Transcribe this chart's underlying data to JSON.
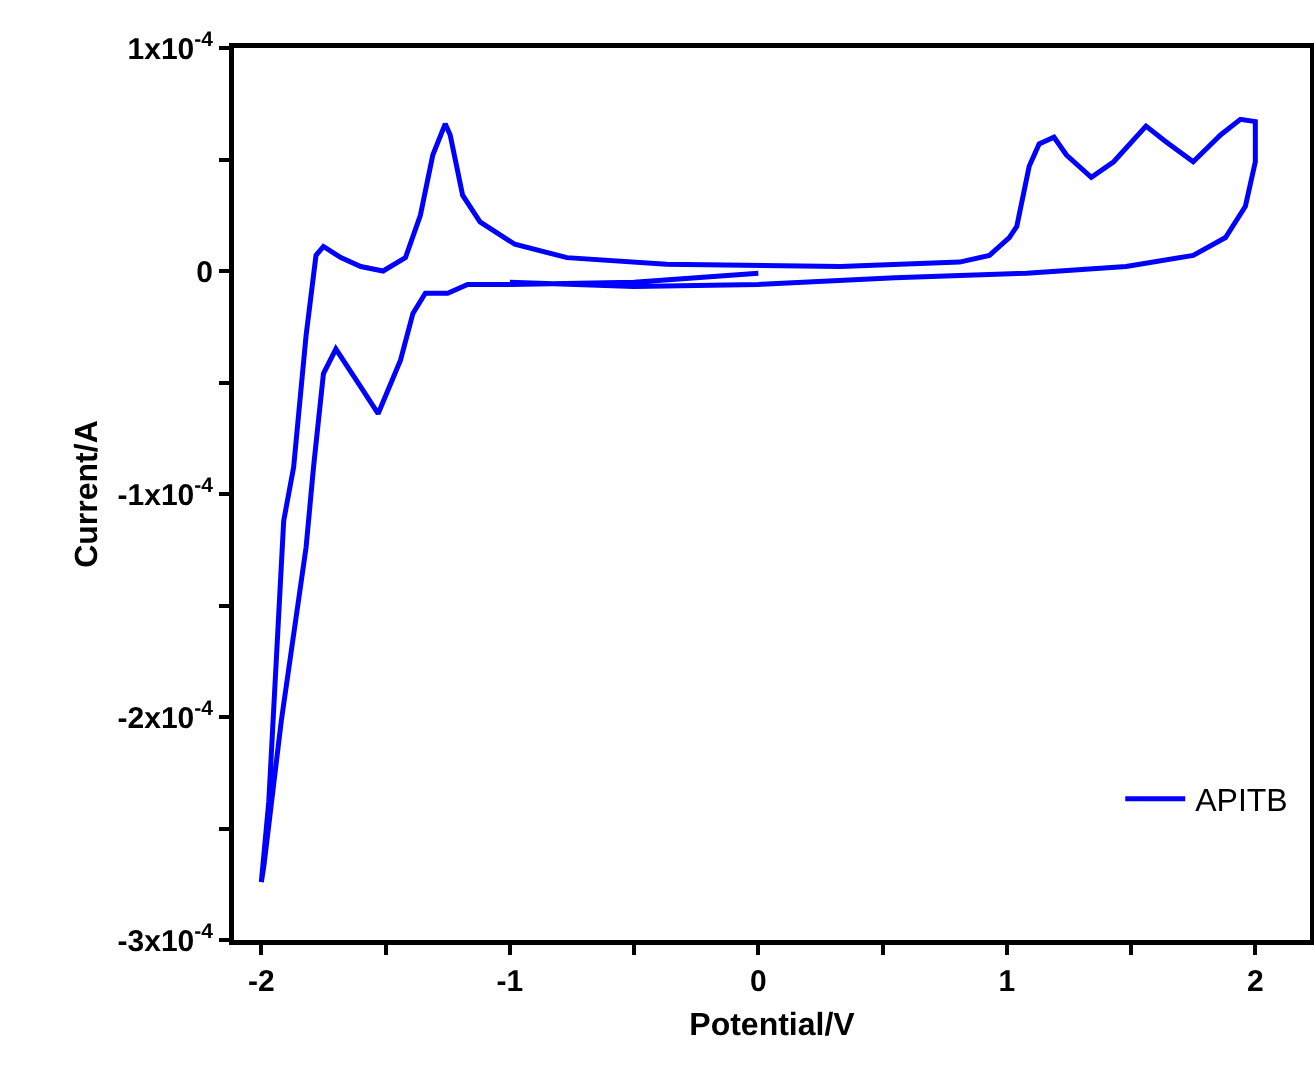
{
  "chart_data": {
    "type": "line",
    "xlabel": "Potential/V",
    "ylabel": "Current/A",
    "xlim": [
      -2.11,
      2.22
    ],
    "xticks": [
      -2,
      {
        "value": -1.5,
        "label": null
      },
      -1,
      {
        "value": -0.5,
        "label": null
      },
      0,
      {
        "value": 0.5,
        "label": null
      },
      1,
      {
        "value": 1.5,
        "label": null
      },
      2
    ],
    "ylim": [
      -0.0003,
      0.0001
    ],
    "yticks": [
      {
        "value": -0.0003,
        "label": "-3x10$^{-4}$"
      },
      {
        "value": -0.00025,
        "label": null
      },
      {
        "value": -0.0002,
        "label": "-2x10$^{-4}$"
      },
      {
        "value": -0.00015,
        "label": null
      },
      {
        "value": -0.0001,
        "label": "-1x10$^{-4}$"
      },
      {
        "value": -5e-05,
        "label": null
      },
      {
        "value": 0,
        "label": "0"
      },
      {
        "value": 5e-05,
        "label": null
      },
      {
        "value": 0.0001,
        "label": "1x10$^{-4}$"
      }
    ],
    "grid": false,
    "legend": "bottom right",
    "series": [
      {
        "name": "APITB",
        "color": "#0000ff",
        "x": [
          0,
          -0.5,
          -1.0,
          -1.17,
          -1.25,
          -1.34,
          -1.39,
          -1.44,
          -1.53,
          -1.6,
          -1.7,
          -1.75,
          -1.79,
          -1.82,
          -1.92,
          -1.99,
          -2.0,
          -1.97,
          -1.91,
          -1.87,
          -1.82,
          -1.78,
          -1.75,
          -1.68,
          -1.6,
          -1.51,
          -1.42,
          -1.36,
          -1.31,
          -1.26,
          -1.24,
          -1.19,
          -1.12,
          -0.98,
          -0.77,
          -0.37,
          0.33,
          0.81,
          0.93,
          1.01,
          1.04,
          1.09,
          1.13,
          1.19,
          1.24,
          1.34,
          1.43,
          1.56,
          1.64,
          1.75,
          1.86,
          1.94,
          2.0,
          2.0,
          1.96,
          1.88,
          1.75,
          1.48,
          1.08,
          0.55,
          0.0,
          -0.5,
          -1.0
        ],
        "values": [
          -1e-06,
          -5e-06,
          -6e-06,
          -6e-06,
          -1e-05,
          -1e-05,
          -1.9e-05,
          -4e-05,
          -6.4e-05,
          -5.2e-05,
          -3.5e-05,
          -4.6e-05,
          -8.8e-05,
          -0.000124,
          -0.000202,
          -0.000267,
          -0.000274,
          -0.000238,
          -0.000112,
          -8.8e-05,
          -2.9e-05,
          7e-06,
          1.1e-05,
          6e-06,
          2e-06,
          0,
          6e-06,
          2.5e-05,
          5.2e-05,
          6.6e-05,
          6.1e-05,
          3.4e-05,
          2.2e-05,
          1.2e-05,
          6e-06,
          3e-06,
          2e-06,
          4e-06,
          7e-06,
          1.5e-05,
          2e-05,
          4.7e-05,
          5.7e-05,
          6e-05,
          5.2e-05,
          4.2e-05,
          4.9e-05,
          6.5e-05,
          5.8e-05,
          4.9e-05,
          6.1e-05,
          6.8e-05,
          6.7e-05,
          4.9e-05,
          2.9e-05,
          1.5e-05,
          7e-06,
          2e-06,
          -1e-06,
          -3e-06,
          -6e-06,
          -7e-06,
          -5e-06
        ]
      }
    ]
  }
}
